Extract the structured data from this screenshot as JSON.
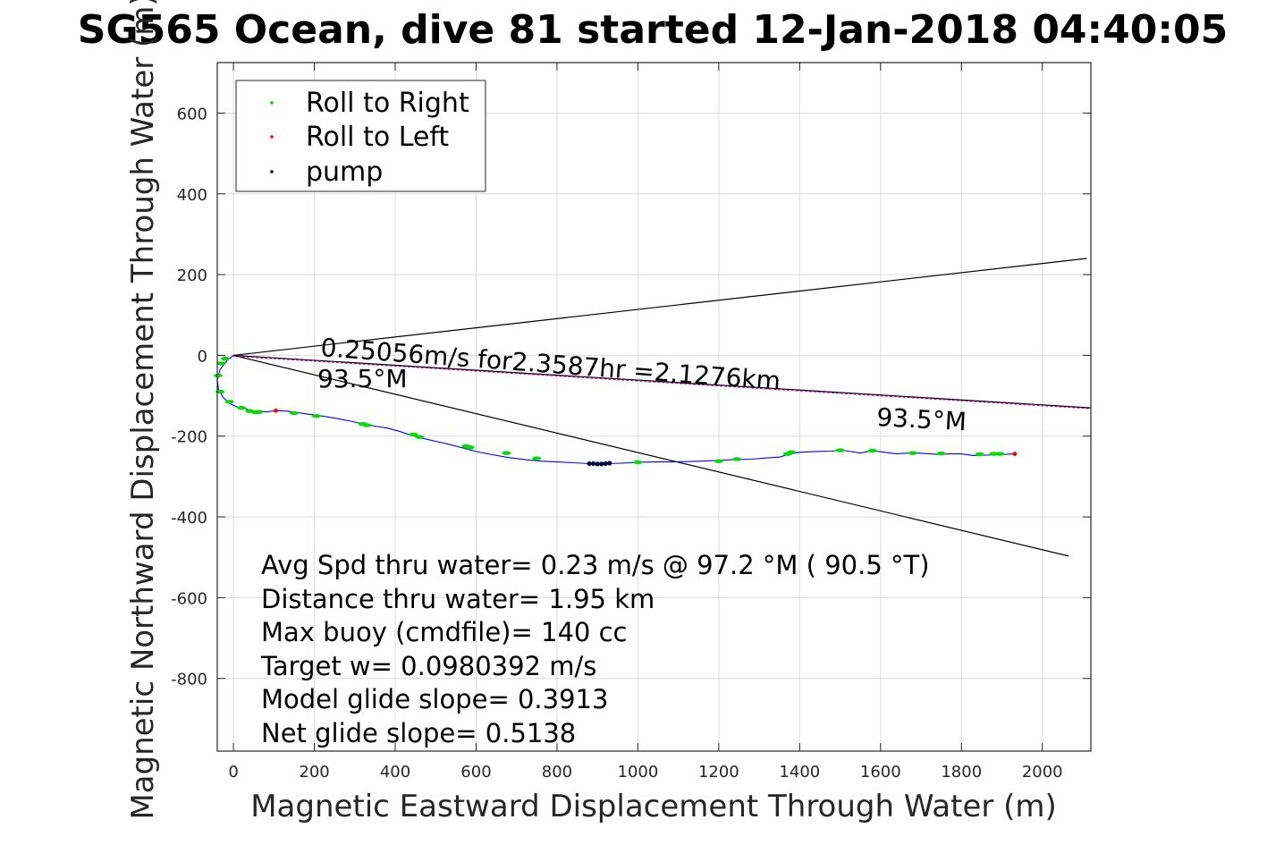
{
  "chart_data": {
    "type": "line",
    "title": "SG565 Ocean, dive 81 started 12-Jan-2018 04:40:05",
    "xlabel": "Magnetic Eastward Displacement Through Water (m)",
    "ylabel": "Magnetic Northward Displacement Through Water (m)",
    "xlim": [
      -40,
      2120
    ],
    "ylim": [
      -980,
      725
    ],
    "xticks": [
      0,
      200,
      400,
      600,
      800,
      1000,
      1200,
      1400,
      1600,
      1800,
      2000
    ],
    "yticks": [
      600,
      400,
      200,
      0,
      -200,
      -400,
      -600,
      -800
    ],
    "grid": true,
    "legend": {
      "placement": "top-left",
      "entries": [
        {
          "label": "Roll to Right",
          "color": "#00dd00"
        },
        {
          "label": "Roll to Left",
          "color": "#ff0000"
        },
        {
          "label": "pump",
          "color": "#000000"
        }
      ]
    },
    "colors": {
      "track": "#0000ff",
      "roll_right": "#00dd00",
      "roll_left": "#ff0000",
      "pump": "#000044",
      "heading_line": "#cc00cc",
      "cone": "#000000"
    },
    "track": {
      "x": [
        0,
        -15,
        -33,
        -40,
        -37,
        -25,
        -8,
        10,
        30,
        55,
        80,
        105,
        130,
        155,
        180,
        205,
        230,
        260,
        290,
        320,
        350,
        380,
        410,
        440,
        460,
        480,
        510,
        540,
        570,
        600,
        640,
        680,
        720,
        760,
        800,
        840,
        880,
        920,
        960,
        1000,
        1040,
        1080,
        1120,
        1160,
        1200,
        1240,
        1280,
        1320,
        1350,
        1370,
        1400,
        1440,
        1480,
        1500,
        1520,
        1550,
        1580,
        1610,
        1640,
        1680,
        1710,
        1740,
        1770,
        1800,
        1830,
        1860,
        1890,
        1910,
        1930
      ],
      "y": [
        0,
        -12,
        -35,
        -60,
        -85,
        -105,
        -120,
        -128,
        -132,
        -140,
        -140,
        -137,
        -138,
        -141,
        -145,
        -148,
        -152,
        -157,
        -163,
        -170,
        -175,
        -180,
        -188,
        -198,
        -204,
        -208,
        -215,
        -222,
        -230,
        -238,
        -246,
        -253,
        -258,
        -262,
        -264,
        -266,
        -268,
        -268,
        -267,
        -265,
        -264,
        -264,
        -263,
        -262,
        -260,
        -258,
        -257,
        -254,
        -252,
        -246,
        -240,
        -238,
        -237,
        -235,
        -237,
        -242,
        -236,
        -240,
        -244,
        -241,
        -243,
        -245,
        -244,
        -244,
        -248,
        -247,
        -246,
        -245,
        -244
      ]
    },
    "roll_right_x": [
      -30,
      -20,
      -38,
      -33,
      -10,
      20,
      40,
      55,
      63,
      150,
      205,
      320,
      330,
      445,
      460,
      575,
      585,
      675,
      750,
      1000,
      1200,
      1245,
      1380,
      1370,
      1500,
      1580,
      1680,
      1750,
      1845,
      1880,
      1895
    ],
    "roll_right_y": [
      -20,
      -8,
      -50,
      -90,
      -115,
      -130,
      -138,
      -141,
      -140,
      -143,
      -150,
      -170,
      -173,
      -196,
      -202,
      -225,
      -228,
      -242,
      -255,
      -265,
      -262,
      -257,
      -240,
      -244,
      -235,
      -236,
      -242,
      -243,
      -245,
      -244,
      -244
    ],
    "roll_left_x": [
      105,
      1932
    ],
    "roll_left_y": [
      -137,
      -244
    ],
    "pump_x": [
      880,
      890,
      900,
      910,
      920,
      930
    ],
    "pump_y": [
      -268,
      -268,
      -269,
      -269,
      -268,
      -267
    ],
    "heading_line": {
      "x": [
        0,
        2120
      ],
      "y": [
        0,
        -130
      ]
    },
    "cone_upper": {
      "x": [
        0,
        2110
      ],
      "y": [
        0,
        240
      ]
    },
    "cone_lower": {
      "x": [
        0,
        2065
      ],
      "y": [
        0,
        -497
      ]
    },
    "annotations": {
      "speed_line": "0.25056m/s for2.3587hr =2.1276km",
      "heading_near": "93.5°M",
      "heading_far": "93.5°M"
    },
    "stats": [
      "Avg Spd thru water=  0.23 m/s @  97.2 °M ( 90.5 °T)",
      "Distance thru water=  1.95 km",
      "Max buoy (cmdfile)= 140 cc",
      "Target w= 0.0980392 m/s",
      "Model glide slope= 0.3913",
      "Net glide slope= 0.5138"
    ]
  }
}
